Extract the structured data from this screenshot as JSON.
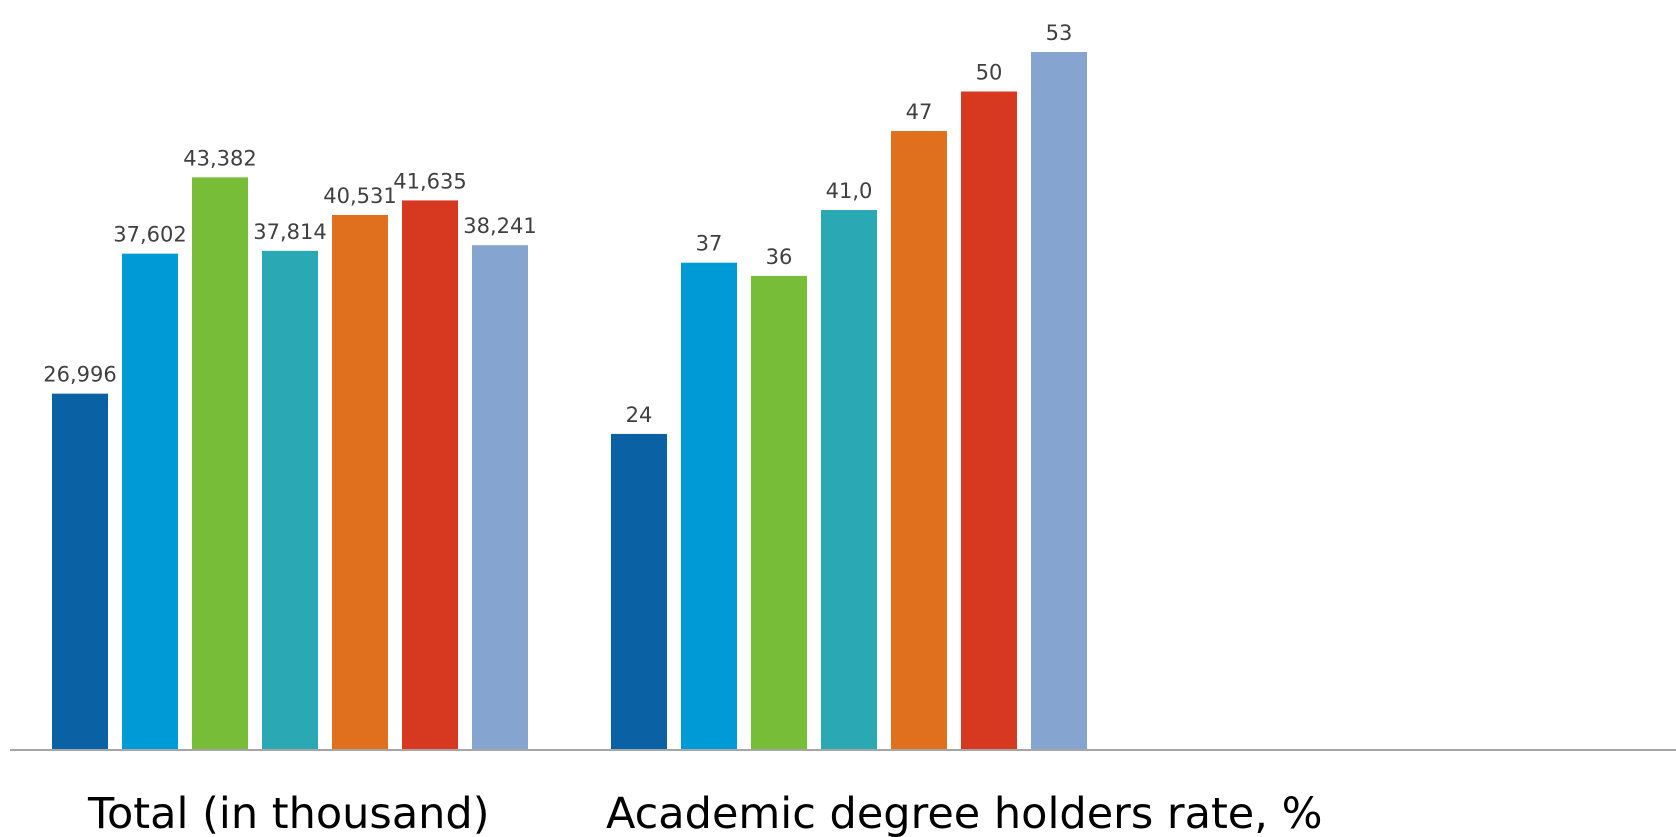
{
  "chart_data": [
    {
      "type": "bar",
      "category": "Total (in thousand)",
      "values": [
        26.996,
        37.602,
        43.382,
        37.814,
        40.531,
        41.635,
        38.241
      ],
      "value_labels": [
        "26,996",
        "37,602",
        "43,382",
        "37,814",
        "40,531",
        "41,635",
        "38,241"
      ],
      "bar_colors": [
        "#0a62a5",
        "#009bd6",
        "#78bd37",
        "#2aa8b3",
        "#e0701e",
        "#d63920",
        "#86a4d0"
      ]
    },
    {
      "type": "bar",
      "category": "Academic degree holders rate, %",
      "values": [
        24,
        37,
        36,
        41.0,
        47,
        50,
        53
      ],
      "value_labels": [
        "24",
        "37",
        "36",
        "41,0",
        "47",
        "50",
        "53"
      ],
      "bar_colors": [
        "#0a62a5",
        "#009bd6",
        "#78bd37",
        "#2aa8b3",
        "#e0701e",
        "#d63920",
        "#86a4d0"
      ]
    }
  ],
  "axis": {
    "color": "#a6a6a6"
  },
  "label_color": "#404040"
}
